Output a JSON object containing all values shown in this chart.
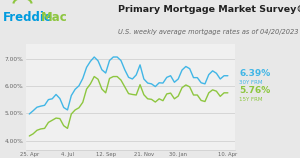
{
  "title": "Primary Mortgage Market Survey®",
  "subtitle": "U.S. weekly average mortgage rates as of 04/20/2023",
  "outer_bg": "#e8e8e8",
  "header_bg": "#ffffff",
  "plot_bg": "#f0f0f0",
  "line_30y_color": "#41b6e6",
  "line_15y_color": "#8dc63f",
  "label_30y": "6.39%",
  "label_30y_sub": "30Y FRM",
  "label_15y": "5.76%",
  "label_15y_sub": "15Y FRM",
  "label_30y_color": "#41b6e6",
  "label_15y_color": "#8dc63f",
  "freddie_blue": "#009bde",
  "freddie_green": "#8dc63f",
  "yticks": [
    4.0,
    5.0,
    6.0,
    7.0
  ],
  "ytick_labels": [
    "4.00%",
    "5.00%",
    "6.00%",
    "7.00%"
  ],
  "xtick_labels": [
    "25. Apr",
    "4. Jul",
    "12. Sep",
    "21. Nov",
    "30. Jan",
    "10. Apr"
  ],
  "xtick_positions": [
    0,
    10,
    20,
    30,
    39,
    52
  ],
  "ylim": [
    3.65,
    7.55
  ],
  "xlim": [
    -1,
    54
  ],
  "y_30y": [
    4.98,
    5.1,
    5.23,
    5.27,
    5.3,
    5.51,
    5.54,
    5.7,
    5.55,
    5.22,
    5.13,
    5.66,
    5.89,
    6.02,
    6.29,
    6.7,
    6.92,
    7.08,
    6.94,
    6.61,
    6.49,
    6.95,
    7.08,
    7.08,
    6.95,
    6.61,
    6.33,
    6.27,
    6.42,
    6.79,
    6.27,
    6.12,
    6.09,
    5.99,
    6.13,
    6.12,
    6.33,
    6.39,
    6.15,
    6.27,
    6.6,
    6.73,
    6.65,
    6.32,
    6.32,
    6.13,
    6.09,
    6.43,
    6.57,
    6.48,
    6.27,
    6.39,
    6.39
  ],
  "y_15y": [
    4.17,
    4.25,
    4.38,
    4.43,
    4.45,
    4.67,
    4.75,
    4.83,
    4.81,
    4.55,
    4.45,
    4.98,
    5.13,
    5.21,
    5.41,
    5.9,
    6.09,
    6.36,
    6.26,
    5.9,
    5.76,
    6.29,
    6.36,
    6.36,
    6.23,
    5.98,
    5.73,
    5.7,
    5.68,
    6.06,
    5.69,
    5.54,
    5.52,
    5.42,
    5.54,
    5.47,
    5.72,
    5.75,
    5.54,
    5.64,
    5.95,
    6.05,
    5.98,
    5.68,
    5.68,
    5.48,
    5.44,
    5.76,
    5.87,
    5.82,
    5.63,
    5.76,
    5.76
  ]
}
